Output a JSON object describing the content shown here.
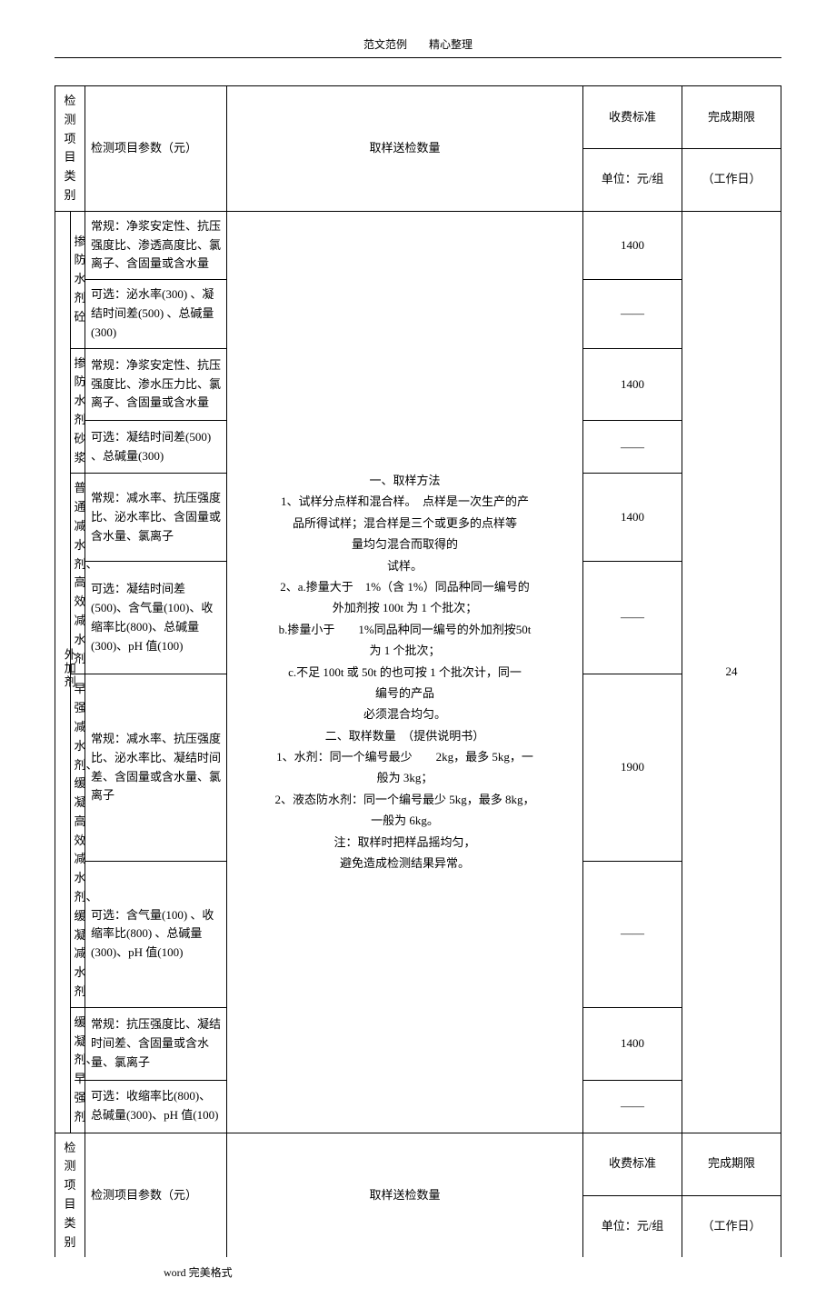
{
  "header": "范文范例　　精心整理",
  "footer": "word 完美格式",
  "table_headers": {
    "category": "检测项目\n类别",
    "params": "检测项目参数（元）",
    "sample": "取样送检数量",
    "fee_line1": "收费标准",
    "fee_line2": "单位：元/组",
    "due_line1": "完成期限",
    "due_line2": "（工作日）"
  },
  "category_main": "外加剂",
  "rows": [
    {
      "sub": "掺防水剂砼",
      "param1": "常规：净浆安定性、抗压强度比、渗透高度比、氯离子、含固量或含水量",
      "fee1": "1400",
      "param2": "可选：泌水率(300) 、凝结时间差(500) 、总碱量(300)",
      "fee2": "——"
    },
    {
      "sub": "掺防水剂砂浆",
      "param1": "常规：净浆安定性、抗压强度比、渗水压力比、氯离子、含固量或含水量",
      "fee1": "1400",
      "param2": "可选：凝结时间差(500) 、总碱量(300)",
      "fee2": "——"
    },
    {
      "sub": "普通减水剂、高效减水剂",
      "param1": "常规：减水率、抗压强度比、泌水率比、含固量或含水量、氯离子",
      "fee1": "1400",
      "param2": "可选：凝结时间差(500)、含气量(100)、收缩率比(800)、总碱量(300)、pH 值(100)",
      "fee2": "——"
    },
    {
      "sub": "早强减水剂、缓凝高效减水剂、缓凝减水剂",
      "param1": "常规：减水率、抗压强度比、泌水率比、凝结时间差、含固量或含水量、氯离子",
      "fee1": "1900",
      "param2": "可选：含气量(100) 、收缩率比(800) 、总碱量(300)、pH 值(100)",
      "fee2": "——"
    },
    {
      "sub": "缓凝剂、早强剂",
      "param1": "常规：抗压强度比、凝结时间差、含固量或含水量、氯离子",
      "fee1": "1400",
      "param2": "可选：收缩率比(800)、总碱量(300)、pH 值(100)",
      "fee2": "——"
    }
  ],
  "sample_text": {
    "t1": "一、取样方法",
    "t2": "1、试样分点样和混合样。　点样是一次生产的产",
    "t3": "品所得试样；混合样是三个或更多的点样等",
    "t4": "量均匀混合而取得的",
    "t5": "试样。",
    "t6": "2、a.掺量大于　1%（含 1%）同品种同一编号的",
    "t7": "外加剂按 100t 为 1 个批次；",
    "t8": "b.掺量小于　　1%同品种同一编号的外加剂按50t",
    "t9": "为 1 个批次；",
    "t10": "c.不足 100t 或 50t 的也可按 1 个批次计，同一",
    "t11": "编号的产品",
    "t12": "必须混合均匀。",
    "t13": "二、取样数量　（提供说明书）",
    "t14": "1、水剂：同一个编号最少　　2kg，最多 5kg，一",
    "t15": "般为 3kg；",
    "t16": "2、液态防水剂：同一个编号最少 5kg，最多 8kg，",
    "t17": "一般为 6kg。",
    "t18": "注：取样时把样品摇均匀，",
    "t19": "避免造成检测结果异常。"
  },
  "due_days": "24"
}
